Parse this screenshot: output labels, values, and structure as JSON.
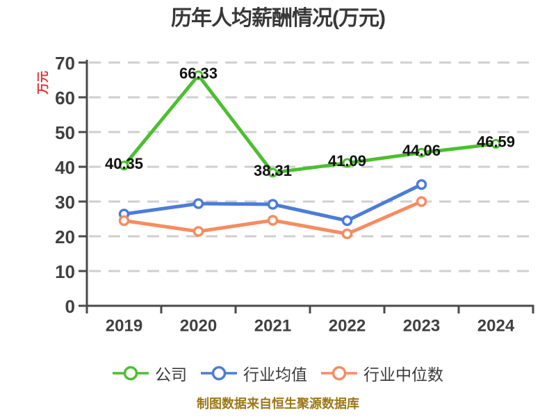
{
  "title": "历年人均薪酬情况(万元)",
  "y_axis_unit": "万元",
  "footer": "制图数据来自恒生聚源数据库",
  "colors": {
    "company_green": "#4cbf2f",
    "industry_mean_blue": "#4b7cd9",
    "industry_median_orange": "#f68c61",
    "grid": "#cfcfcf",
    "axis": "#4a4a4a",
    "tick_text": "#404040",
    "value_label_text": "#121212",
    "title_text": "#383838",
    "footer_text": "#9c7718",
    "unit_label_red": "#e03131",
    "marker_fill": "#ffffff"
  },
  "chart_data": {
    "type": "line",
    "title": "历年人均薪酬情况(万元)",
    "categories": [
      "2019",
      "2020",
      "2021",
      "2022",
      "2023",
      "2024"
    ],
    "ylim": [
      0,
      70
    ],
    "yticks": [
      0,
      10,
      20,
      30,
      40,
      50,
      60,
      70
    ],
    "grid": "horizontal dashed",
    "legend_position": "bottom",
    "series": [
      {
        "key": "company",
        "name": "公司",
        "color": "#4cbf2f",
        "values": [
          40.35,
          66.33,
          38.31,
          41.09,
          44.06,
          46.59
        ],
        "value_labels": [
          "40.35",
          "66.33",
          "38.31",
          "41.09",
          "44.06",
          "46.59"
        ]
      },
      {
        "key": "industry-mean",
        "name": "行业均值",
        "color": "#4b7cd9",
        "values": [
          26.4,
          29.4,
          29.2,
          24.5,
          34.9
        ]
      },
      {
        "key": "industry-median",
        "name": "行业中位数",
        "color": "#f68c61",
        "values": [
          24.5,
          21.4,
          24.6,
          20.7,
          30.0
        ]
      }
    ]
  }
}
